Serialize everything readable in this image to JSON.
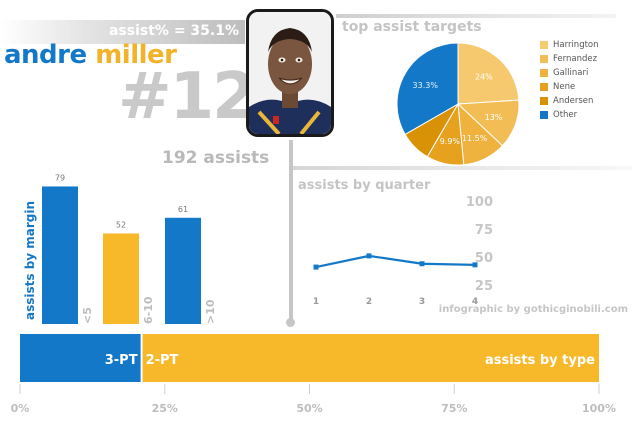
{
  "header": {
    "assist_pct": "assist% = 35.1%",
    "first_name": "andre",
    "last_name": "miller",
    "jersey": "#12",
    "total_assists": "192 assists"
  },
  "credit": "infographic by gothicginobili.com",
  "colors": {
    "blue": "#1478c8",
    "gold": "#f2b22a",
    "gray": "#c4c4c4"
  },
  "chart_data": [
    {
      "type": "pie",
      "title": "top assist targets",
      "labels": [
        "Harrington",
        "Fernandez",
        "Gallinari",
        "Nene",
        "Andersen",
        "Other"
      ],
      "values": [
        24,
        13,
        11.5,
        9.9,
        8.3,
        33.3
      ],
      "value_labels": [
        "24%",
        "13%",
        "11.5%",
        "9.9%",
        "",
        "33.3%"
      ],
      "colors": [
        "#f7c96e",
        "#f3bd55",
        "#efb23f",
        "#e6a21e",
        "#d99105",
        "#1478c8"
      ],
      "legend_position": "right"
    },
    {
      "type": "bar",
      "title": "assists by margin",
      "categories": [
        "<5",
        "6-10",
        ">10"
      ],
      "values": [
        79,
        52,
        61
      ],
      "colors": [
        "#1478c8",
        "#f7b92a",
        "#1478c8"
      ]
    },
    {
      "type": "line",
      "title": "assists by quarter",
      "x": [
        1,
        2,
        3,
        4
      ],
      "values": [
        41,
        51,
        44,
        43
      ],
      "y_ticks": [
        25,
        50,
        75,
        100
      ],
      "ylim": [
        25,
        100
      ]
    },
    {
      "type": "bar",
      "orientation": "horizontal-stacked",
      "title": "assists by type",
      "categories": [
        "3-PT",
        "2-PT"
      ],
      "values": [
        21,
        79
      ],
      "colors": [
        "#1478c8",
        "#f7b92a"
      ],
      "x_ticks": [
        "0%",
        "25%",
        "50%",
        "75%",
        "100%"
      ],
      "xlim": [
        0,
        100
      ]
    }
  ]
}
